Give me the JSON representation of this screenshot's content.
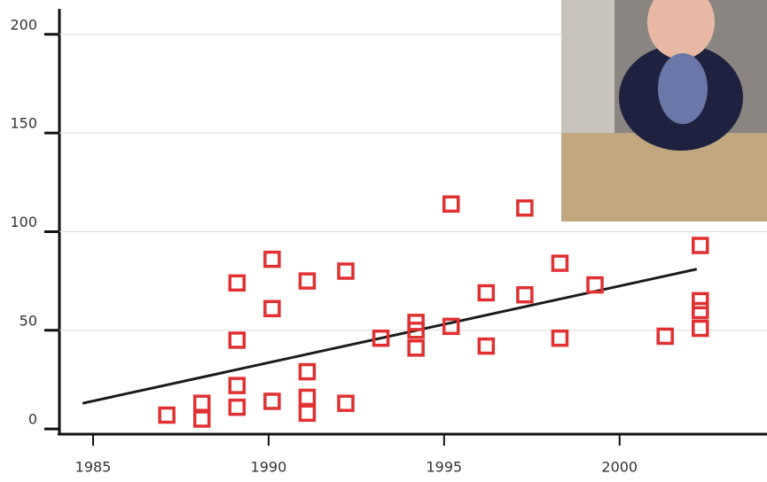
{
  "chart_data": {
    "type": "scatter",
    "x": [
      1987.1,
      1988.1,
      1988.1,
      1989.1,
      1989.1,
      1989.1,
      1989.1,
      1990.1,
      1990.1,
      1990.1,
      1991.1,
      1991.1,
      1991.1,
      1991.1,
      1992.2,
      1992.2,
      1993.2,
      1994.2,
      1994.2,
      1994.2,
      1995.2,
      1995.2,
      1996.2,
      1996.2,
      1997.3,
      1997.3,
      1998.3,
      1998.3,
      1999.3,
      2001.3,
      2002.3,
      2002.3,
      2002.3,
      2002.3
    ],
    "values": [
      7,
      13,
      5,
      74,
      45,
      22,
      11,
      86,
      61,
      14,
      75,
      29,
      16,
      8,
      80,
      13,
      46,
      54,
      50,
      41,
      114,
      52,
      69,
      42,
      112,
      68,
      84,
      46,
      73,
      47,
      93,
      65,
      60,
      51
    ],
    "color": "#e03030",
    "marker": "square",
    "trend_line": {
      "x": [
        1984.7,
        2002.2
      ],
      "values": [
        13,
        81
      ],
      "color": "#1a1a1a"
    },
    "xlim": [
      1984.04,
      2004.2
    ],
    "ylim": [
      -1.3,
      213.3
    ],
    "xticks": [
      1985,
      1990,
      1995,
      2000
    ],
    "yticks": [
      0,
      50,
      100,
      150,
      200
    ],
    "grid": true
  }
}
